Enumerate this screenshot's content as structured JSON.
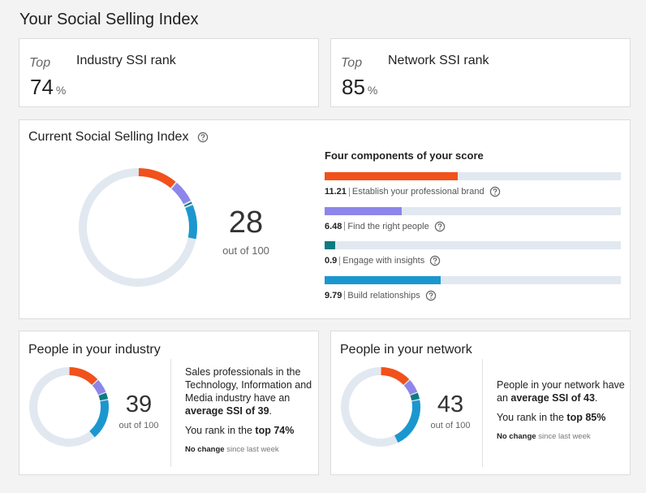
{
  "header": {
    "title": "Your Social Selling Index"
  },
  "ranks": [
    {
      "prefix": "Top",
      "title": "Industry SSI rank",
      "value": 74,
      "unit": "%"
    },
    {
      "prefix": "Top",
      "title": "Network SSI rank",
      "value": 85,
      "unit": "%"
    }
  ],
  "current": {
    "title": "Current Social Selling Index",
    "score": 28,
    "score_caption": "out of 100",
    "ylim": [
      0,
      100
    ],
    "components_title": "Four components of your score",
    "xlim": [
      0,
      25
    ],
    "components": [
      {
        "name": "Establish your professional brand",
        "value": 11.21,
        "color": "#f1511b"
      },
      {
        "name": "Find the right people",
        "value": 6.48,
        "color": "#8d86e9"
      },
      {
        "name": "Engage with insights",
        "value": 0.9,
        "color": "#0e7b80"
      },
      {
        "name": "Build relationships",
        "value": 9.79,
        "color": "#1b97cf"
      }
    ]
  },
  "groups": [
    {
      "title": "People in your industry",
      "score": 39,
      "score_caption": "out of 100",
      "ylim": [
        0,
        100
      ],
      "segments": [
        {
          "value": 13,
          "color": "#f1511b"
        },
        {
          "value": 6,
          "color": "#8d86e9"
        },
        {
          "value": 3,
          "color": "#0e7b80"
        },
        {
          "value": 17,
          "color": "#1b97cf"
        }
      ],
      "description": [
        "Sales professionals in the Technology, Information and Media industry have an ",
        "average SSI of 39",
        "."
      ],
      "rank_text": [
        "You rank in the ",
        "top 74%"
      ],
      "change_text": [
        "No change",
        " since last week"
      ]
    },
    {
      "title": "People in your network",
      "score": 43,
      "score_caption": "out of 100",
      "ylim": [
        0,
        100
      ],
      "segments": [
        {
          "value": 13,
          "color": "#f1511b"
        },
        {
          "value": 6,
          "color": "#8d86e9"
        },
        {
          "value": 3,
          "color": "#0e7b80"
        },
        {
          "value": 21,
          "color": "#1b97cf"
        }
      ],
      "description": [
        "People in your network have an ",
        "average SSI of 43",
        "."
      ],
      "rank_text": [
        "You rank in the ",
        "top 85%"
      ],
      "change_text": [
        "No change",
        " since last week"
      ]
    }
  ]
}
